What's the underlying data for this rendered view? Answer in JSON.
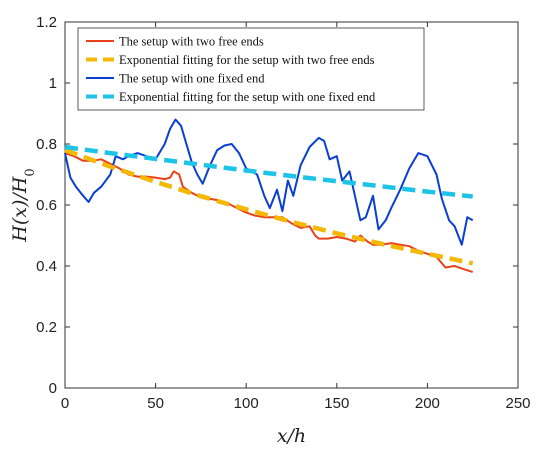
{
  "chart_data": {
    "type": "line",
    "title": "",
    "xlabel": "x/h",
    "ylabel": "H(x)/H_0",
    "xlim": [
      0,
      250
    ],
    "ylim": [
      0,
      1.2
    ],
    "xticks": [
      0,
      50,
      100,
      150,
      200,
      250
    ],
    "xtick_labels": [
      "0",
      "50",
      "100",
      "150",
      "200",
      "250"
    ],
    "yticks": [
      0,
      0.2,
      0.4,
      0.6,
      0.8,
      1,
      1.2
    ],
    "ytick_labels": [
      "0",
      "0.2",
      "0.4",
      "0.6",
      "0.8",
      "1",
      "1.2"
    ],
    "grid": false,
    "legend_position": "top-left",
    "series": [
      {
        "name": "The setup with two free ends",
        "color": "#e8421c",
        "style": "solid",
        "x": [
          0,
          5,
          10,
          15,
          20,
          25,
          30,
          35,
          40,
          45,
          50,
          55,
          58,
          60,
          63,
          65,
          70,
          75,
          80,
          85,
          90,
          95,
          100,
          105,
          110,
          115,
          120,
          125,
          130,
          135,
          138,
          140,
          145,
          150,
          155,
          160,
          163,
          167,
          170,
          175,
          180,
          185,
          190,
          195,
          200,
          205,
          210,
          215,
          220,
          225
        ],
        "y": [
          0.77,
          0.76,
          0.745,
          0.745,
          0.75,
          0.735,
          0.72,
          0.7,
          0.693,
          0.693,
          0.69,
          0.685,
          0.69,
          0.71,
          0.7,
          0.66,
          0.64,
          0.625,
          0.62,
          0.615,
          0.605,
          0.59,
          0.575,
          0.565,
          0.56,
          0.56,
          0.56,
          0.54,
          0.525,
          0.53,
          0.5,
          0.49,
          0.49,
          0.495,
          0.49,
          0.48,
          0.5,
          0.48,
          0.47,
          0.47,
          0.475,
          0.47,
          0.465,
          0.45,
          0.44,
          0.43,
          0.395,
          0.4,
          0.39,
          0.38
        ]
      },
      {
        "name": "Exponential fitting for the setup with two free ends",
        "color": "#f5b800",
        "style": "dashed",
        "x": [
          0,
          25,
          50,
          75,
          100,
          125,
          150,
          175,
          200,
          225
        ],
        "y": [
          0.78,
          0.726,
          0.676,
          0.629,
          0.586,
          0.545,
          0.507,
          0.472,
          0.44,
          0.409
        ]
      },
      {
        "name": "The setup with one fixed end",
        "color": "#0a3fcf",
        "style": "solid",
        "x": [
          0,
          3,
          6,
          10,
          13,
          16,
          20,
          25,
          28,
          32,
          35,
          40,
          45,
          50,
          55,
          58,
          61,
          64,
          67,
          70,
          73,
          76,
          80,
          84,
          88,
          92,
          96,
          100,
          103,
          106,
          110,
          113,
          117,
          120,
          123,
          126,
          130,
          135,
          140,
          143,
          146,
          150,
          153,
          157,
          160,
          163,
          166,
          170,
          173,
          177,
          180,
          185,
          190,
          195,
          200,
          205,
          208,
          212,
          215,
          219,
          222,
          225
        ],
        "y": [
          0.77,
          0.69,
          0.66,
          0.63,
          0.61,
          0.64,
          0.66,
          0.7,
          0.76,
          0.75,
          0.76,
          0.77,
          0.76,
          0.75,
          0.8,
          0.85,
          0.88,
          0.86,
          0.8,
          0.74,
          0.7,
          0.67,
          0.73,
          0.78,
          0.795,
          0.8,
          0.77,
          0.72,
          0.71,
          0.7,
          0.63,
          0.59,
          0.65,
          0.58,
          0.68,
          0.63,
          0.73,
          0.79,
          0.82,
          0.81,
          0.75,
          0.76,
          0.68,
          0.71,
          0.63,
          0.55,
          0.56,
          0.63,
          0.52,
          0.55,
          0.59,
          0.65,
          0.72,
          0.77,
          0.76,
          0.7,
          0.62,
          0.55,
          0.53,
          0.47,
          0.56,
          0.55
        ]
      },
      {
        "name": "Exponential fitting for the setup with one fixed end",
        "color": "#1ec3e8",
        "style": "dashed",
        "x": [
          0,
          25,
          50,
          75,
          100,
          125,
          150,
          175,
          200,
          225
        ],
        "y": [
          0.79,
          0.77,
          0.751,
          0.732,
          0.713,
          0.695,
          0.678,
          0.661,
          0.644,
          0.628
        ]
      }
    ]
  }
}
